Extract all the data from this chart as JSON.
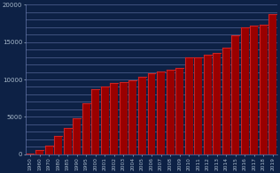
{
  "categories": [
    "1950",
    "1960",
    "1970",
    "1980",
    "1985",
    "1990",
    "1995",
    "2000",
    "2001",
    "2002",
    "2003",
    "2004",
    "2005",
    "2006",
    "2007",
    "2008",
    "2009",
    "2010",
    "2011",
    "2012",
    "2013",
    "2014",
    "2015",
    "2016",
    "2017",
    "2018",
    "2019"
  ],
  "values": [
    90,
    560,
    1100,
    2400,
    3500,
    4800,
    6800,
    8700,
    9100,
    9500,
    9700,
    9850,
    10350,
    10800,
    11050,
    11350,
    11550,
    12900,
    13000,
    13250,
    13550,
    14200,
    15900,
    17000,
    17200,
    17350,
    18700
  ],
  "bar_color": "#990000",
  "bar_edge_color": "#cc0000",
  "background_color": "#0d2145",
  "grid_color": "#6677aa",
  "text_color": "#aabbcc",
  "ylim": [
    0,
    20000
  ],
  "yticks": [
    0,
    5000,
    10000,
    15000,
    20000
  ],
  "num_grid_lines": 20
}
